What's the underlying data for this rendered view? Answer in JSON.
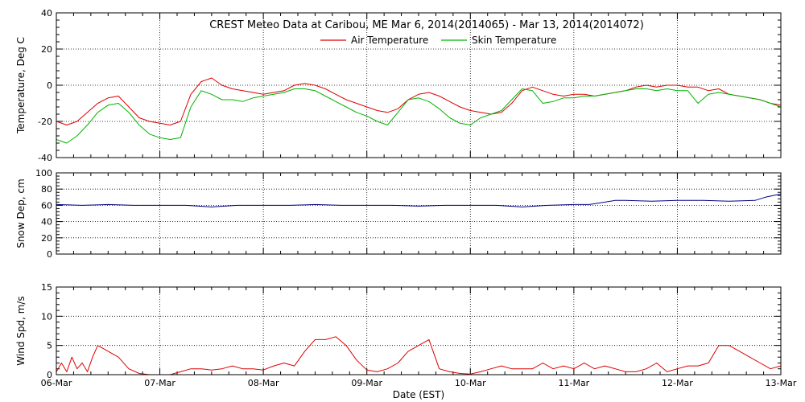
{
  "title": "CREST Meteo Data at Caribou, ME   Mar  6, 2014(2014065) - Mar 13, 2014(2014072)",
  "xlabel": "Date (EST)",
  "x_ticks": [
    "06-Mar",
    "07-Mar",
    "08-Mar",
    "09-Mar",
    "10-Mar",
    "11-Mar",
    "12-Mar",
    "13-Mar"
  ],
  "colors": {
    "air": "#dd0000",
    "skin": "#00b400",
    "snow": "#000080",
    "wind": "#dd0000",
    "axis": "#000000",
    "grid": "#000000"
  },
  "chart_data": [
    {
      "type": "line",
      "ylabel": "Temperature, Deg C",
      "xlim": [
        0,
        7
      ],
      "ylim": [
        -40,
        40
      ],
      "y_ticks": [
        "-40",
        "-20",
        "0",
        "20",
        "40"
      ],
      "legend": {
        "placement": "top-center"
      },
      "series": [
        {
          "name": "Air Temperature",
          "x": [
            0,
            0.1,
            0.2,
            0.3,
            0.4,
            0.5,
            0.6,
            0.7,
            0.8,
            0.9,
            1.0,
            1.1,
            1.2,
            1.3,
            1.4,
            1.5,
            1.6,
            1.7,
            1.8,
            1.9,
            2.0,
            2.1,
            2.2,
            2.3,
            2.4,
            2.5,
            2.6,
            2.7,
            2.8,
            2.9,
            3.0,
            3.1,
            3.2,
            3.3,
            3.4,
            3.5,
            3.6,
            3.7,
            3.8,
            3.9,
            4.0,
            4.1,
            4.2,
            4.3,
            4.4,
            4.5,
            4.6,
            4.7,
            4.8,
            4.9,
            5.0,
            5.1,
            5.2,
            5.3,
            5.4,
            5.5,
            5.6,
            5.7,
            5.8,
            5.9,
            6.0,
            6.1,
            6.2,
            6.3,
            6.4,
            6.5,
            6.6,
            6.7,
            6.8,
            6.9,
            7.0
          ],
          "y": [
            -20,
            -22,
            -20,
            -15,
            -10,
            -7,
            -6,
            -12,
            -18,
            -20,
            -21,
            -22,
            -20,
            -5,
            2,
            4,
            0,
            -2,
            -3,
            -4,
            -5,
            -4,
            -3,
            0,
            1,
            0,
            -2,
            -5,
            -8,
            -10,
            -12,
            -14,
            -15,
            -13,
            -8,
            -5,
            -4,
            -6,
            -9,
            -12,
            -14,
            -15,
            -16,
            -15,
            -10,
            -3,
            -1,
            -3,
            -5,
            -6,
            -5,
            -5,
            -6,
            -5,
            -4,
            -3,
            -1,
            0,
            -1,
            0,
            0,
            -1,
            -1,
            -3,
            -2,
            -5,
            -6,
            -7,
            -8,
            -10,
            -11
          ]
        },
        {
          "name": "Skin Temperature",
          "x": [
            0,
            0.1,
            0.2,
            0.3,
            0.4,
            0.5,
            0.6,
            0.7,
            0.8,
            0.9,
            1.0,
            1.1,
            1.2,
            1.3,
            1.4,
            1.5,
            1.6,
            1.7,
            1.8,
            1.9,
            2.0,
            2.1,
            2.2,
            2.3,
            2.4,
            2.5,
            2.6,
            2.7,
            2.8,
            2.9,
            3.0,
            3.1,
            3.2,
            3.3,
            3.4,
            3.5,
            3.6,
            3.7,
            3.8,
            3.9,
            4.0,
            4.1,
            4.2,
            4.3,
            4.4,
            4.5,
            4.6,
            4.7,
            4.8,
            4.9,
            5.0,
            5.1,
            5.2,
            5.3,
            5.4,
            5.5,
            5.6,
            5.7,
            5.8,
            5.9,
            6.0,
            6.1,
            6.2,
            6.3,
            6.4,
            6.5,
            6.6,
            6.7,
            6.8,
            6.9,
            7.0
          ],
          "y": [
            -30,
            -32,
            -28,
            -22,
            -15,
            -11,
            -10,
            -15,
            -22,
            -27,
            -29,
            -30,
            -29,
            -12,
            -3,
            -5,
            -8,
            -8,
            -9,
            -7,
            -6,
            -5,
            -4,
            -2,
            -2,
            -3,
            -6,
            -9,
            -12,
            -15,
            -17,
            -20,
            -22,
            -15,
            -8,
            -7,
            -9,
            -13,
            -18,
            -21,
            -22,
            -18,
            -16,
            -14,
            -8,
            -2,
            -3,
            -10,
            -9,
            -7,
            -7,
            -6,
            -6,
            -5,
            -4,
            -3,
            -2,
            -2,
            -3,
            -2,
            -3,
            -3,
            -10,
            -5,
            -4,
            -5,
            -6,
            -7,
            -8,
            -10,
            -12
          ]
        }
      ]
    },
    {
      "type": "line",
      "ylabel": "Snow Dep, cm",
      "xlim": [
        0,
        7
      ],
      "ylim": [
        0,
        100
      ],
      "y_ticks": [
        "0",
        "20",
        "40",
        "60",
        "80",
        "100"
      ],
      "series": [
        {
          "name": "",
          "x": [
            0,
            0.25,
            0.5,
            0.75,
            1.0,
            1.25,
            1.5,
            1.75,
            2.0,
            2.25,
            2.5,
            2.75,
            3.0,
            3.25,
            3.5,
            3.75,
            4.0,
            4.25,
            4.5,
            4.75,
            5.0,
            5.15,
            5.25,
            5.4,
            5.5,
            5.75,
            6.0,
            6.25,
            6.5,
            6.75,
            6.85,
            7.0
          ],
          "y": [
            61,
            60,
            61,
            60,
            60,
            60,
            58,
            60,
            60,
            60,
            61,
            60,
            60,
            60,
            59,
            60,
            60,
            60,
            58,
            60,
            61,
            61,
            63,
            66,
            66,
            65,
            66,
            66,
            65,
            66,
            70,
            74
          ]
        }
      ]
    },
    {
      "type": "line",
      "ylabel": "Wind Spd, m/s",
      "xlim": [
        0,
        7
      ],
      "ylim": [
        0,
        15
      ],
      "y_ticks": [
        "0",
        "5",
        "10",
        "15"
      ],
      "series": [
        {
          "name": "",
          "x": [
            0,
            0.05,
            0.1,
            0.15,
            0.2,
            0.25,
            0.3,
            0.35,
            0.4,
            0.5,
            0.6,
            0.7,
            0.8,
            0.9,
            1.0,
            1.1,
            1.2,
            1.3,
            1.4,
            1.5,
            1.6,
            1.7,
            1.8,
            1.9,
            2.0,
            2.1,
            2.2,
            2.3,
            2.4,
            2.5,
            2.6,
            2.7,
            2.8,
            2.9,
            3.0,
            3.1,
            3.2,
            3.3,
            3.4,
            3.5,
            3.6,
            3.7,
            3.8,
            3.9,
            4.0,
            4.1,
            4.2,
            4.3,
            4.4,
            4.5,
            4.6,
            4.7,
            4.8,
            4.9,
            5.0,
            5.1,
            5.2,
            5.3,
            5.4,
            5.5,
            5.6,
            5.7,
            5.8,
            5.9,
            6.0,
            6.1,
            6.2,
            6.3,
            6.4,
            6.5,
            6.6,
            6.7,
            6.8,
            6.9,
            7.0
          ],
          "y": [
            0.5,
            2,
            0.5,
            3,
            1,
            2,
            0.5,
            3,
            5,
            4,
            3,
            1,
            0.2,
            0,
            0,
            0,
            0.5,
            1,
            1,
            0.8,
            1,
            1.5,
            1,
            1,
            0.8,
            1.5,
            2,
            1.5,
            4,
            6,
            6,
            6.5,
            5,
            2.5,
            0.8,
            0.5,
            1,
            2,
            4,
            5,
            6,
            1,
            0.5,
            0.2,
            0.1,
            0.5,
            1,
            1.5,
            1,
            1,
            1,
            2,
            1,
            1.5,
            1,
            2,
            1,
            1.5,
            1,
            0.5,
            0.5,
            1,
            2,
            0.5,
            1,
            1.5,
            1.5,
            2,
            5,
            5,
            4,
            3,
            2,
            1,
            1.5
          ]
        }
      ]
    }
  ]
}
